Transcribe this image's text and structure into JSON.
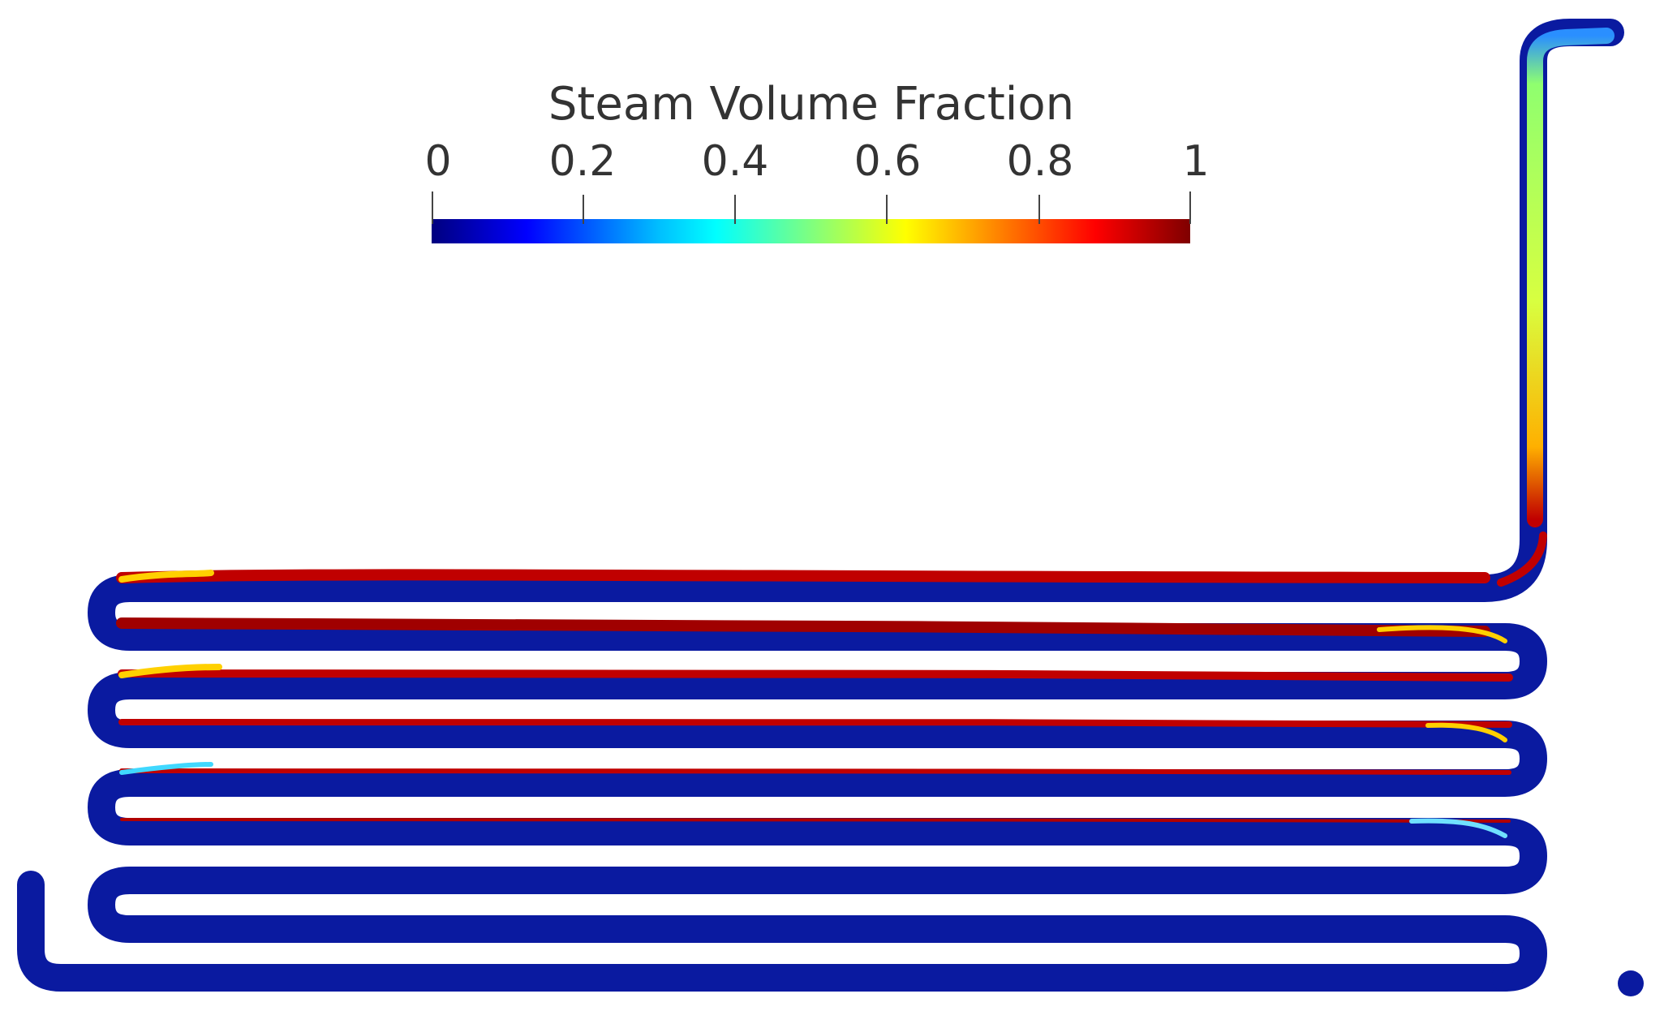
{
  "colorbar": {
    "title": "Steam Volume Fraction",
    "ticks": [
      "0",
      "0.2",
      "0.4",
      "0.6",
      "0.8",
      "1"
    ],
    "min": 0,
    "max": 1,
    "colormap": [
      "#00007f",
      "#0000ff",
      "#00bfff",
      "#00ffff",
      "#7fff7f",
      "#ffff00",
      "#ff8000",
      "#ff0000",
      "#7f0000"
    ]
  },
  "colors": {
    "liquid": "#0a1aa0",
    "steam": "#b01010",
    "background": "#ffffff"
  }
}
